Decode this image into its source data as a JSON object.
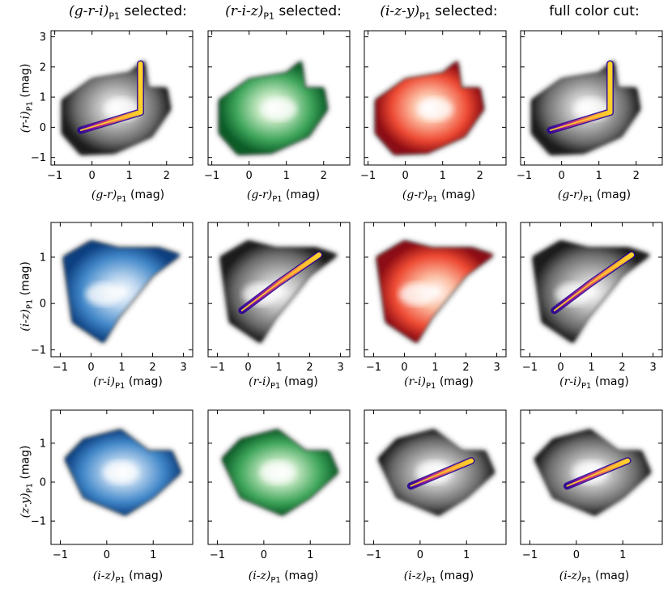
{
  "figure": {
    "column_titles": [
      {
        "math": "(g-r-i)",
        "sub": "P1",
        "suffix": " selected:"
      },
      {
        "math": "(r-i-z)",
        "sub": "P1",
        "suffix": " selected:"
      },
      {
        "math": "(i-z-y)",
        "sub": "P1",
        "suffix": " selected:"
      },
      {
        "math": "",
        "sub": "",
        "suffix": "full color cut:"
      }
    ],
    "rows": [
      {
        "xlabel": {
          "math": "(g-r)",
          "sub": "P1",
          "unit": " (mag)"
        },
        "ylabel": {
          "math": "(r-i)",
          "sub": "P1",
          "unit": " (mag)"
        }
      },
      {
        "xlabel": {
          "math": "(r-i)",
          "sub": "P1",
          "unit": " (mag)"
        },
        "ylabel": {
          "math": "(i-z)",
          "sub": "P1",
          "unit": " (mag)"
        }
      },
      {
        "xlabel": {
          "math": "(i-z)",
          "sub": "P1",
          "unit": " (mag)"
        },
        "ylabel": {
          "math": "(z-y)",
          "sub": "P1",
          "unit": " (mag)"
        }
      }
    ],
    "colors": {
      "blues": "#2a6fc4",
      "greens": "#1f8a3c",
      "reds": "#d6261e",
      "plasma_dark": "#2c0594",
      "plasma_mid": "#d8466c",
      "plasma_light": "#fdd22a",
      "gray": "#777777"
    }
  },
  "chart_data": [
    {
      "type": "heatmap",
      "row": 0,
      "col": 0,
      "colormap": "plasma-over-gray",
      "xlim": [
        -1.1,
        2.7
      ],
      "ylim": [
        -1.25,
        3.2
      ],
      "xticks": [
        -1,
        0,
        1,
        2
      ],
      "yticks": [
        -1,
        0,
        1,
        2,
        3
      ],
      "selected_track": [
        [
          -0.3,
          -0.1
        ],
        [
          0.5,
          0.2
        ],
        [
          1.3,
          0.5
        ],
        [
          1.3,
          2.1
        ]
      ]
    },
    {
      "type": "heatmap",
      "row": 0,
      "col": 1,
      "colormap": "greens-over-gray",
      "xlim": [
        -1.1,
        2.7
      ],
      "ylim": [
        -1.25,
        3.2
      ],
      "xticks": [
        -1,
        0,
        1,
        2
      ],
      "yticks": [
        -1,
        0,
        1,
        2,
        3
      ]
    },
    {
      "type": "heatmap",
      "row": 0,
      "col": 2,
      "colormap": "reds-over-gray",
      "xlim": [
        -1.1,
        2.7
      ],
      "ylim": [
        -1.25,
        3.2
      ],
      "xticks": [
        -1,
        0,
        1,
        2
      ],
      "yticks": [
        -1,
        0,
        1,
        2,
        3
      ]
    },
    {
      "type": "heatmap",
      "row": 0,
      "col": 3,
      "colormap": "plasma-over-gray",
      "xlim": [
        -1.1,
        2.7
      ],
      "ylim": [
        -1.25,
        3.2
      ],
      "xticks": [
        -1,
        0,
        1,
        2
      ],
      "yticks": [
        -1,
        0,
        1,
        2,
        3
      ],
      "selected_track": [
        [
          -0.3,
          -0.1
        ],
        [
          0.5,
          0.2
        ],
        [
          1.3,
          0.5
        ],
        [
          1.3,
          2.1
        ]
      ]
    },
    {
      "type": "heatmap",
      "row": 1,
      "col": 0,
      "colormap": "blues-over-gray",
      "xlim": [
        -1.3,
        3.3
      ],
      "ylim": [
        -1.15,
        1.75
      ],
      "xticks": [
        -1,
        0,
        1,
        2,
        3
      ],
      "yticks": [
        -1,
        0,
        1
      ]
    },
    {
      "type": "heatmap",
      "row": 1,
      "col": 1,
      "colormap": "plasma-over-gray",
      "xlim": [
        -1.3,
        3.3
      ],
      "ylim": [
        -1.15,
        1.75
      ],
      "xticks": [
        -1,
        0,
        1,
        2,
        3
      ],
      "yticks": [
        -1,
        0,
        1
      ],
      "selected_track": [
        [
          -0.2,
          -0.15
        ],
        [
          1.0,
          0.45
        ],
        [
          2.3,
          1.05
        ]
      ]
    },
    {
      "type": "heatmap",
      "row": 1,
      "col": 2,
      "colormap": "reds-over-gray",
      "xlim": [
        -1.3,
        3.3
      ],
      "ylim": [
        -1.15,
        1.75
      ],
      "xticks": [
        -1,
        0,
        1,
        2,
        3
      ],
      "yticks": [
        -1,
        0,
        1
      ]
    },
    {
      "type": "heatmap",
      "row": 1,
      "col": 3,
      "colormap": "plasma-over-gray",
      "xlim": [
        -1.3,
        3.3
      ],
      "ylim": [
        -1.15,
        1.75
      ],
      "xticks": [
        -1,
        0,
        1,
        2,
        3
      ],
      "yticks": [
        -1,
        0,
        1
      ],
      "selected_track": [
        [
          -0.2,
          -0.15
        ],
        [
          1.0,
          0.45
        ],
        [
          2.3,
          1.05
        ]
      ]
    },
    {
      "type": "heatmap",
      "row": 2,
      "col": 0,
      "colormap": "blues-over-gray",
      "xlim": [
        -1.2,
        1.85
      ],
      "ylim": [
        -1.6,
        1.85
      ],
      "xticks": [
        -1,
        0,
        1
      ],
      "yticks": [
        -1,
        0,
        1
      ]
    },
    {
      "type": "heatmap",
      "row": 2,
      "col": 1,
      "colormap": "greens-over-gray",
      "xlim": [
        -1.2,
        1.85
      ],
      "ylim": [
        -1.6,
        1.85
      ],
      "xticks": [
        -1,
        0,
        1
      ],
      "yticks": [
        -1,
        0,
        1
      ]
    },
    {
      "type": "heatmap",
      "row": 2,
      "col": 2,
      "colormap": "plasma-over-gray",
      "xlim": [
        -1.2,
        1.85
      ],
      "ylim": [
        -1.6,
        1.85
      ],
      "xticks": [
        -1,
        0,
        1
      ],
      "yticks": [
        -1,
        0,
        1
      ],
      "selected_track": [
        [
          -0.2,
          -0.1
        ],
        [
          0.5,
          0.25
        ],
        [
          1.1,
          0.55
        ]
      ]
    },
    {
      "type": "heatmap",
      "row": 2,
      "col": 3,
      "colormap": "plasma-over-gray",
      "xlim": [
        -1.2,
        1.85
      ],
      "ylim": [
        -1.6,
        1.85
      ],
      "xticks": [
        -1,
        0,
        1
      ],
      "yticks": [
        -1,
        0,
        1
      ],
      "selected_track": [
        [
          -0.2,
          -0.1
        ],
        [
          0.5,
          0.25
        ],
        [
          1.1,
          0.55
        ]
      ]
    }
  ]
}
